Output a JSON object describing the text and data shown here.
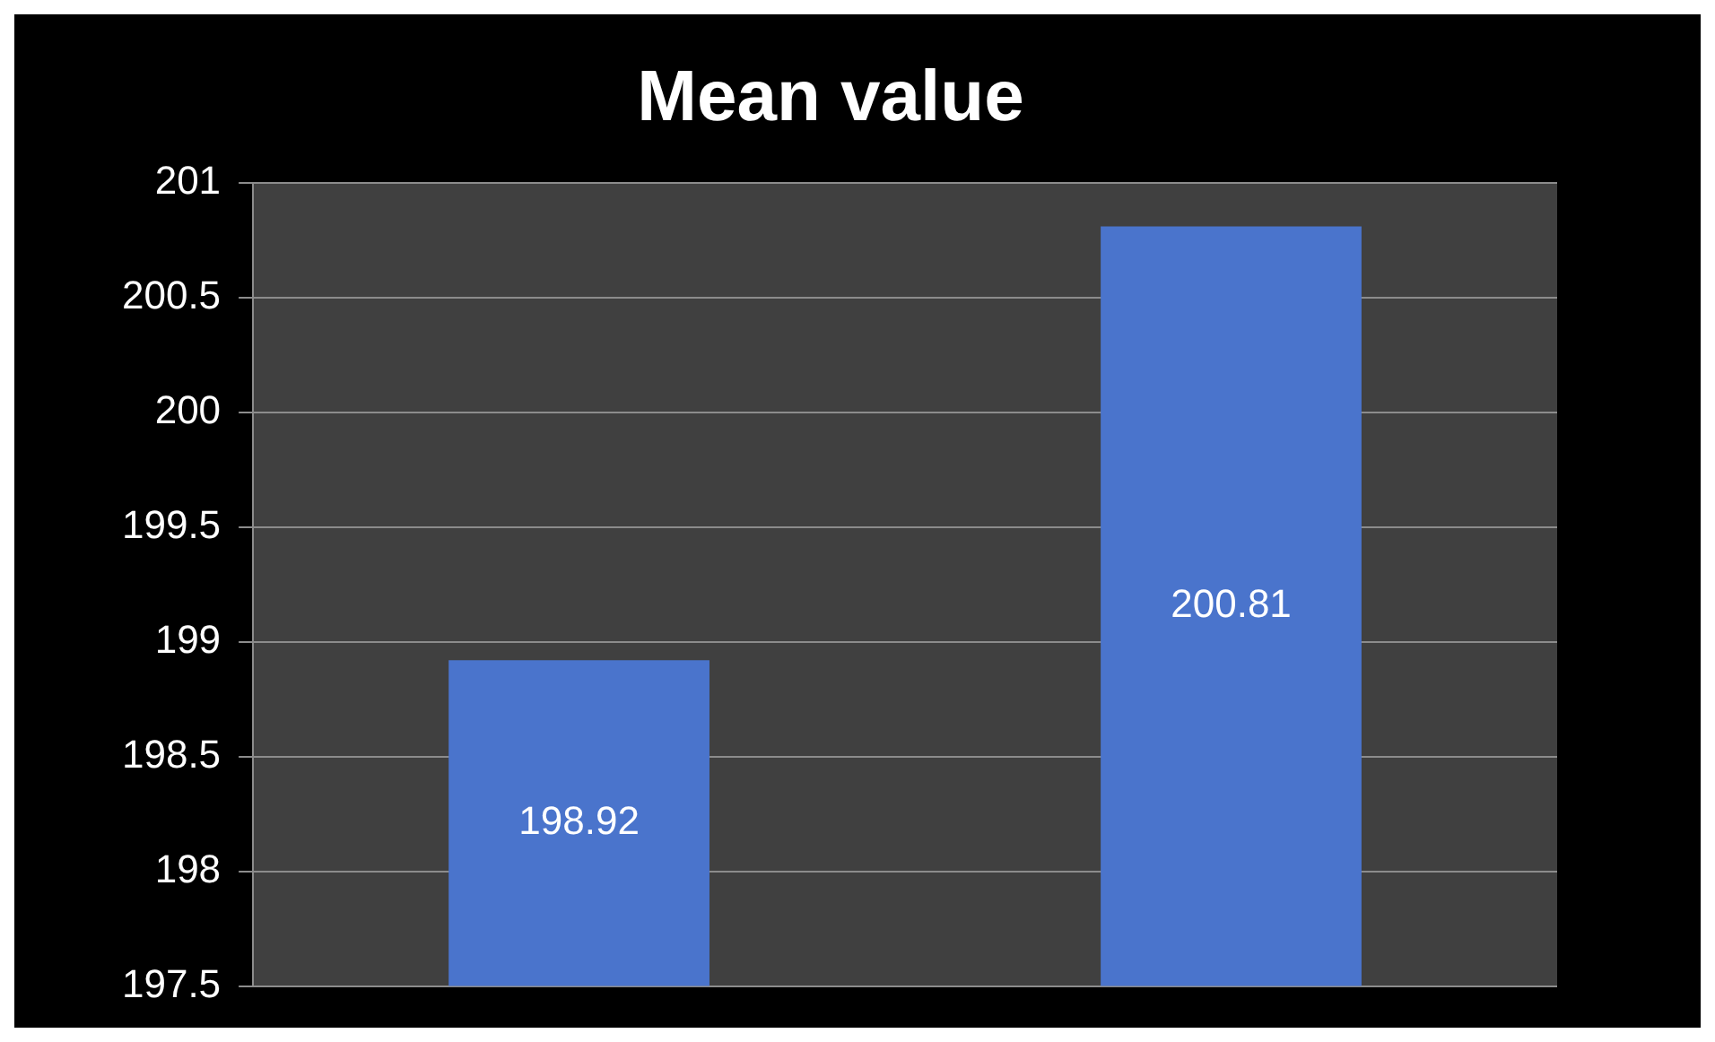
{
  "chart_data": {
    "type": "bar",
    "title": "Mean value",
    "categories": [
      null,
      null
    ],
    "values": [
      198.92,
      200.81
    ],
    "color": "#4a74cc",
    "ylim": [
      197.5,
      201
    ],
    "yticks": [
      197.5,
      198,
      198.5,
      199,
      199.5,
      200,
      200.5,
      201
    ],
    "grid": "y",
    "data_labels": true,
    "legend": false
  }
}
